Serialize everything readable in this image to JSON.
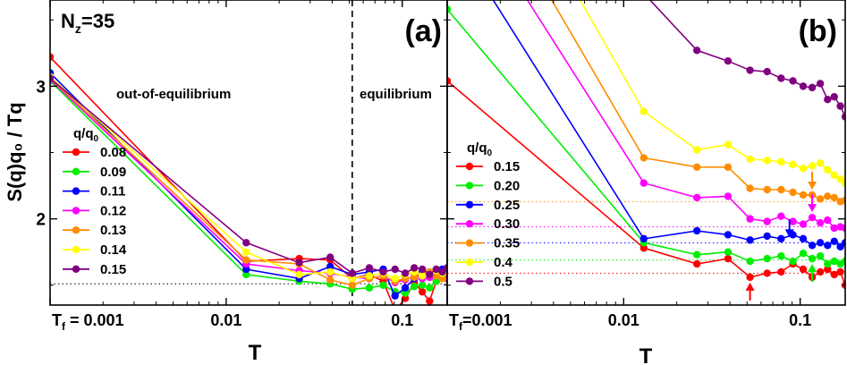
{
  "y_axis_label": "S(q)q₀ / Tq",
  "x_axis_label": "T",
  "chart_data": [
    {
      "type": "line",
      "panel_label": "(a)",
      "annotation": "Nz=35",
      "annotation_main": "N",
      "annotation_sub": "z",
      "annotation_tail": "=35",
      "regions": [
        "out-of-equilibrium",
        "equilibrium"
      ],
      "x_scale": "log",
      "xlim": [
        0.001,
        0.18
      ],
      "ylim": [
        1.35,
        3.65
      ],
      "xticks": [
        0.001,
        0.01,
        0.1
      ],
      "xtick_labels": [
        "Tf = 0.001",
        "0.01",
        "0.1"
      ],
      "xtick_label_first_main": "T",
      "xtick_label_first_sub": "f",
      "xtick_label_first_tail": " = 0.001",
      "yticks": [
        2,
        3
      ],
      "ytick_labels": [
        "2",
        "3"
      ],
      "vline_x": 0.052,
      "hline_y": 1.51,
      "legend_title": "q/q0",
      "legend_title_main": "q/q",
      "legend_title_sub": "0",
      "legend_placement": "left",
      "series": [
        {
          "name": "0.08",
          "color": "#ff0000",
          "x": [
            0.001,
            0.013,
            0.026,
            0.039,
            0.052,
            0.065,
            0.078,
            0.091,
            0.104,
            0.117,
            0.13,
            0.143,
            0.156,
            0.169,
            0.18
          ],
          "y": [
            3.22,
            1.68,
            1.7,
            1.69,
            1.55,
            1.58,
            1.53,
            1.31,
            1.4,
            1.52,
            1.45,
            1.38,
            1.53,
            1.6,
            1.55
          ]
        },
        {
          "name": "0.09",
          "color": "#00ee00",
          "x": [
            0.001,
            0.013,
            0.026,
            0.039,
            0.052,
            0.065,
            0.078,
            0.091,
            0.104,
            0.117,
            0.13,
            0.143,
            0.156,
            0.169,
            0.18
          ],
          "y": [
            3.04,
            1.58,
            1.53,
            1.51,
            1.47,
            1.48,
            1.5,
            1.45,
            1.44,
            1.49,
            1.5,
            1.48,
            1.53,
            1.56,
            1.58
          ]
        },
        {
          "name": "0.11",
          "color": "#0000ff",
          "x": [
            0.001,
            0.013,
            0.026,
            0.039,
            0.052,
            0.065,
            0.078,
            0.091,
            0.104,
            0.117,
            0.13,
            0.143,
            0.156,
            0.169,
            0.18
          ],
          "y": [
            3.1,
            1.62,
            1.55,
            1.64,
            1.58,
            1.6,
            1.62,
            1.42,
            1.48,
            1.55,
            1.6,
            1.56,
            1.6,
            1.62,
            1.58
          ]
        },
        {
          "name": "0.12",
          "color": "#ff00ff",
          "x": [
            0.001,
            0.013,
            0.026,
            0.039,
            0.052,
            0.065,
            0.078,
            0.091,
            0.104,
            0.117,
            0.13,
            0.143,
            0.156,
            0.169,
            0.18
          ],
          "y": [
            3.05,
            1.66,
            1.61,
            1.59,
            1.56,
            1.55,
            1.57,
            1.52,
            1.54,
            1.57,
            1.55,
            1.56,
            1.59,
            1.57,
            1.55
          ]
        },
        {
          "name": "0.13",
          "color": "#ff8c00",
          "x": [
            0.001,
            0.013,
            0.026,
            0.039,
            0.052,
            0.065,
            0.078,
            0.091,
            0.104,
            0.117,
            0.13,
            0.143,
            0.156,
            0.169,
            0.18
          ],
          "y": [
            3.06,
            1.69,
            1.66,
            1.54,
            1.5,
            1.55,
            1.57,
            1.53,
            1.55,
            1.56,
            1.58,
            1.6,
            1.57,
            1.55,
            1.6
          ]
        },
        {
          "name": "0.14",
          "color": "#ffff00",
          "x": [
            0.001,
            0.013,
            0.026,
            0.039,
            0.052,
            0.065,
            0.078,
            0.091,
            0.104,
            0.117,
            0.13,
            0.143,
            0.156,
            0.169,
            0.18
          ],
          "y": [
            3.07,
            1.75,
            1.58,
            1.6,
            1.55,
            1.57,
            1.59,
            1.55,
            1.58,
            1.6,
            1.57,
            1.58,
            1.61,
            1.59,
            1.62
          ]
        },
        {
          "name": "0.15",
          "color": "#800080",
          "x": [
            0.001,
            0.013,
            0.026,
            0.039,
            0.052,
            0.065,
            0.078,
            0.091,
            0.104,
            0.117,
            0.13,
            0.143,
            0.156,
            0.169,
            0.18
          ],
          "y": [
            3.06,
            1.82,
            1.67,
            1.71,
            1.59,
            1.63,
            1.6,
            1.62,
            1.59,
            1.63,
            1.62,
            1.58,
            1.62,
            1.6,
            1.63
          ]
        }
      ]
    },
    {
      "type": "line",
      "panel_label": "(b)",
      "x_scale": "log",
      "xlim": [
        0.001,
        0.18
      ],
      "ylim": [
        1.35,
        3.65
      ],
      "xticks": [
        0.001,
        0.01,
        0.1
      ],
      "xtick_labels": [
        "Tf=0.001",
        "0.01",
        "0.1"
      ],
      "xtick_label_first_main": "T",
      "xtick_label_first_sub": "f",
      "xtick_label_first_tail": "=0.001",
      "legend_title": "q/q0",
      "legend_title_main": "q/q",
      "legend_title_sub": "0",
      "legend_placement": "left",
      "series": [
        {
          "name": "0.15",
          "color": "#ff0000",
          "x": [
            0.001,
            0.013,
            0.026,
            0.039,
            0.052,
            0.065,
            0.078,
            0.091,
            0.104,
            0.117,
            0.13,
            0.143,
            0.156,
            0.169,
            0.18
          ],
          "y": [
            3.04,
            1.78,
            1.66,
            1.7,
            1.56,
            1.59,
            1.6,
            1.66,
            1.62,
            1.56,
            1.6,
            1.62,
            1.58,
            1.6,
            1.5
          ],
          "ref_line_y": 1.59,
          "arrow": {
            "x": 0.052,
            "direction": "up"
          }
        },
        {
          "name": "0.20",
          "color": "#00ee00",
          "x": [
            0.001,
            0.013,
            0.026,
            0.039,
            0.052,
            0.065,
            0.078,
            0.091,
            0.104,
            0.117,
            0.13,
            0.143,
            0.156,
            0.169,
            0.18
          ],
          "y": [
            3.58,
            1.82,
            1.73,
            1.75,
            1.68,
            1.7,
            1.72,
            1.68,
            1.74,
            1.7,
            1.72,
            1.66,
            1.68,
            1.66,
            1.68
          ],
          "ref_line_y": 1.69,
          "arrow": {
            "x": 0.117,
            "direction": "up"
          }
        },
        {
          "name": "0.25",
          "color": "#0000ff",
          "x": [
            0.001,
            0.013,
            0.026,
            0.039,
            0.052,
            0.065,
            0.078,
            0.091,
            0.104,
            0.117,
            0.13,
            0.143,
            0.156,
            0.169,
            0.18
          ],
          "y": [
            4.2,
            1.85,
            1.91,
            1.88,
            1.84,
            1.87,
            1.85,
            1.88,
            1.85,
            1.8,
            1.82,
            1.8,
            1.83,
            1.79,
            1.82
          ],
          "ref_line_y": 1.82,
          "arrow": {
            "x": 0.087,
            "direction": "down"
          }
        },
        {
          "name": "0.30",
          "color": "#ff00ff",
          "x": [
            0.001,
            0.013,
            0.026,
            0.039,
            0.052,
            0.065,
            0.078,
            0.091,
            0.104,
            0.117,
            0.13,
            0.143,
            0.156,
            0.169,
            0.18
          ],
          "y": [
            4.6,
            2.27,
            2.16,
            2.17,
            2.0,
            1.98,
            2.02,
            1.98,
            1.96,
            2.01,
            1.97,
            1.99,
            1.93,
            1.94,
            1.93
          ],
          "ref_line_y": 1.94,
          "arrow": {
            "x": 0.117,
            "direction": "down"
          }
        },
        {
          "name": "0.35",
          "color": "#ff8c00",
          "x": [
            0.001,
            0.013,
            0.026,
            0.039,
            0.052,
            0.065,
            0.078,
            0.091,
            0.104,
            0.117,
            0.13,
            0.143,
            0.156,
            0.169,
            0.18
          ],
          "y": [
            5.0,
            2.46,
            2.39,
            2.39,
            2.23,
            2.22,
            2.22,
            2.2,
            2.18,
            2.18,
            2.15,
            2.17,
            2.16,
            2.13,
            2.14
          ],
          "ref_line_y": 2.13,
          "arrow": {
            "x": 0.117,
            "direction": "down"
          }
        },
        {
          "name": "0.4",
          "color": "#ffff00",
          "x": [
            0.001,
            0.013,
            0.026,
            0.039,
            0.052,
            0.065,
            0.078,
            0.091,
            0.104,
            0.117,
            0.13,
            0.143,
            0.156,
            0.169,
            0.18
          ],
          "y": [
            5.4,
            2.81,
            2.52,
            2.56,
            2.45,
            2.44,
            2.43,
            2.41,
            2.38,
            2.4,
            2.42,
            2.37,
            2.33,
            2.3,
            2.27
          ]
        },
        {
          "name": "0.5",
          "color": "#800080",
          "x": [
            0.013,
            0.026,
            0.039,
            0.052,
            0.065,
            0.078,
            0.091,
            0.104,
            0.117,
            0.13,
            0.143,
            0.156,
            0.169,
            0.18
          ],
          "y": [
            3.7,
            3.27,
            3.19,
            3.12,
            3.11,
            3.06,
            3.04,
            3.0,
            2.99,
            3.02,
            2.9,
            2.92,
            2.85,
            2.77
          ]
        }
      ]
    }
  ]
}
